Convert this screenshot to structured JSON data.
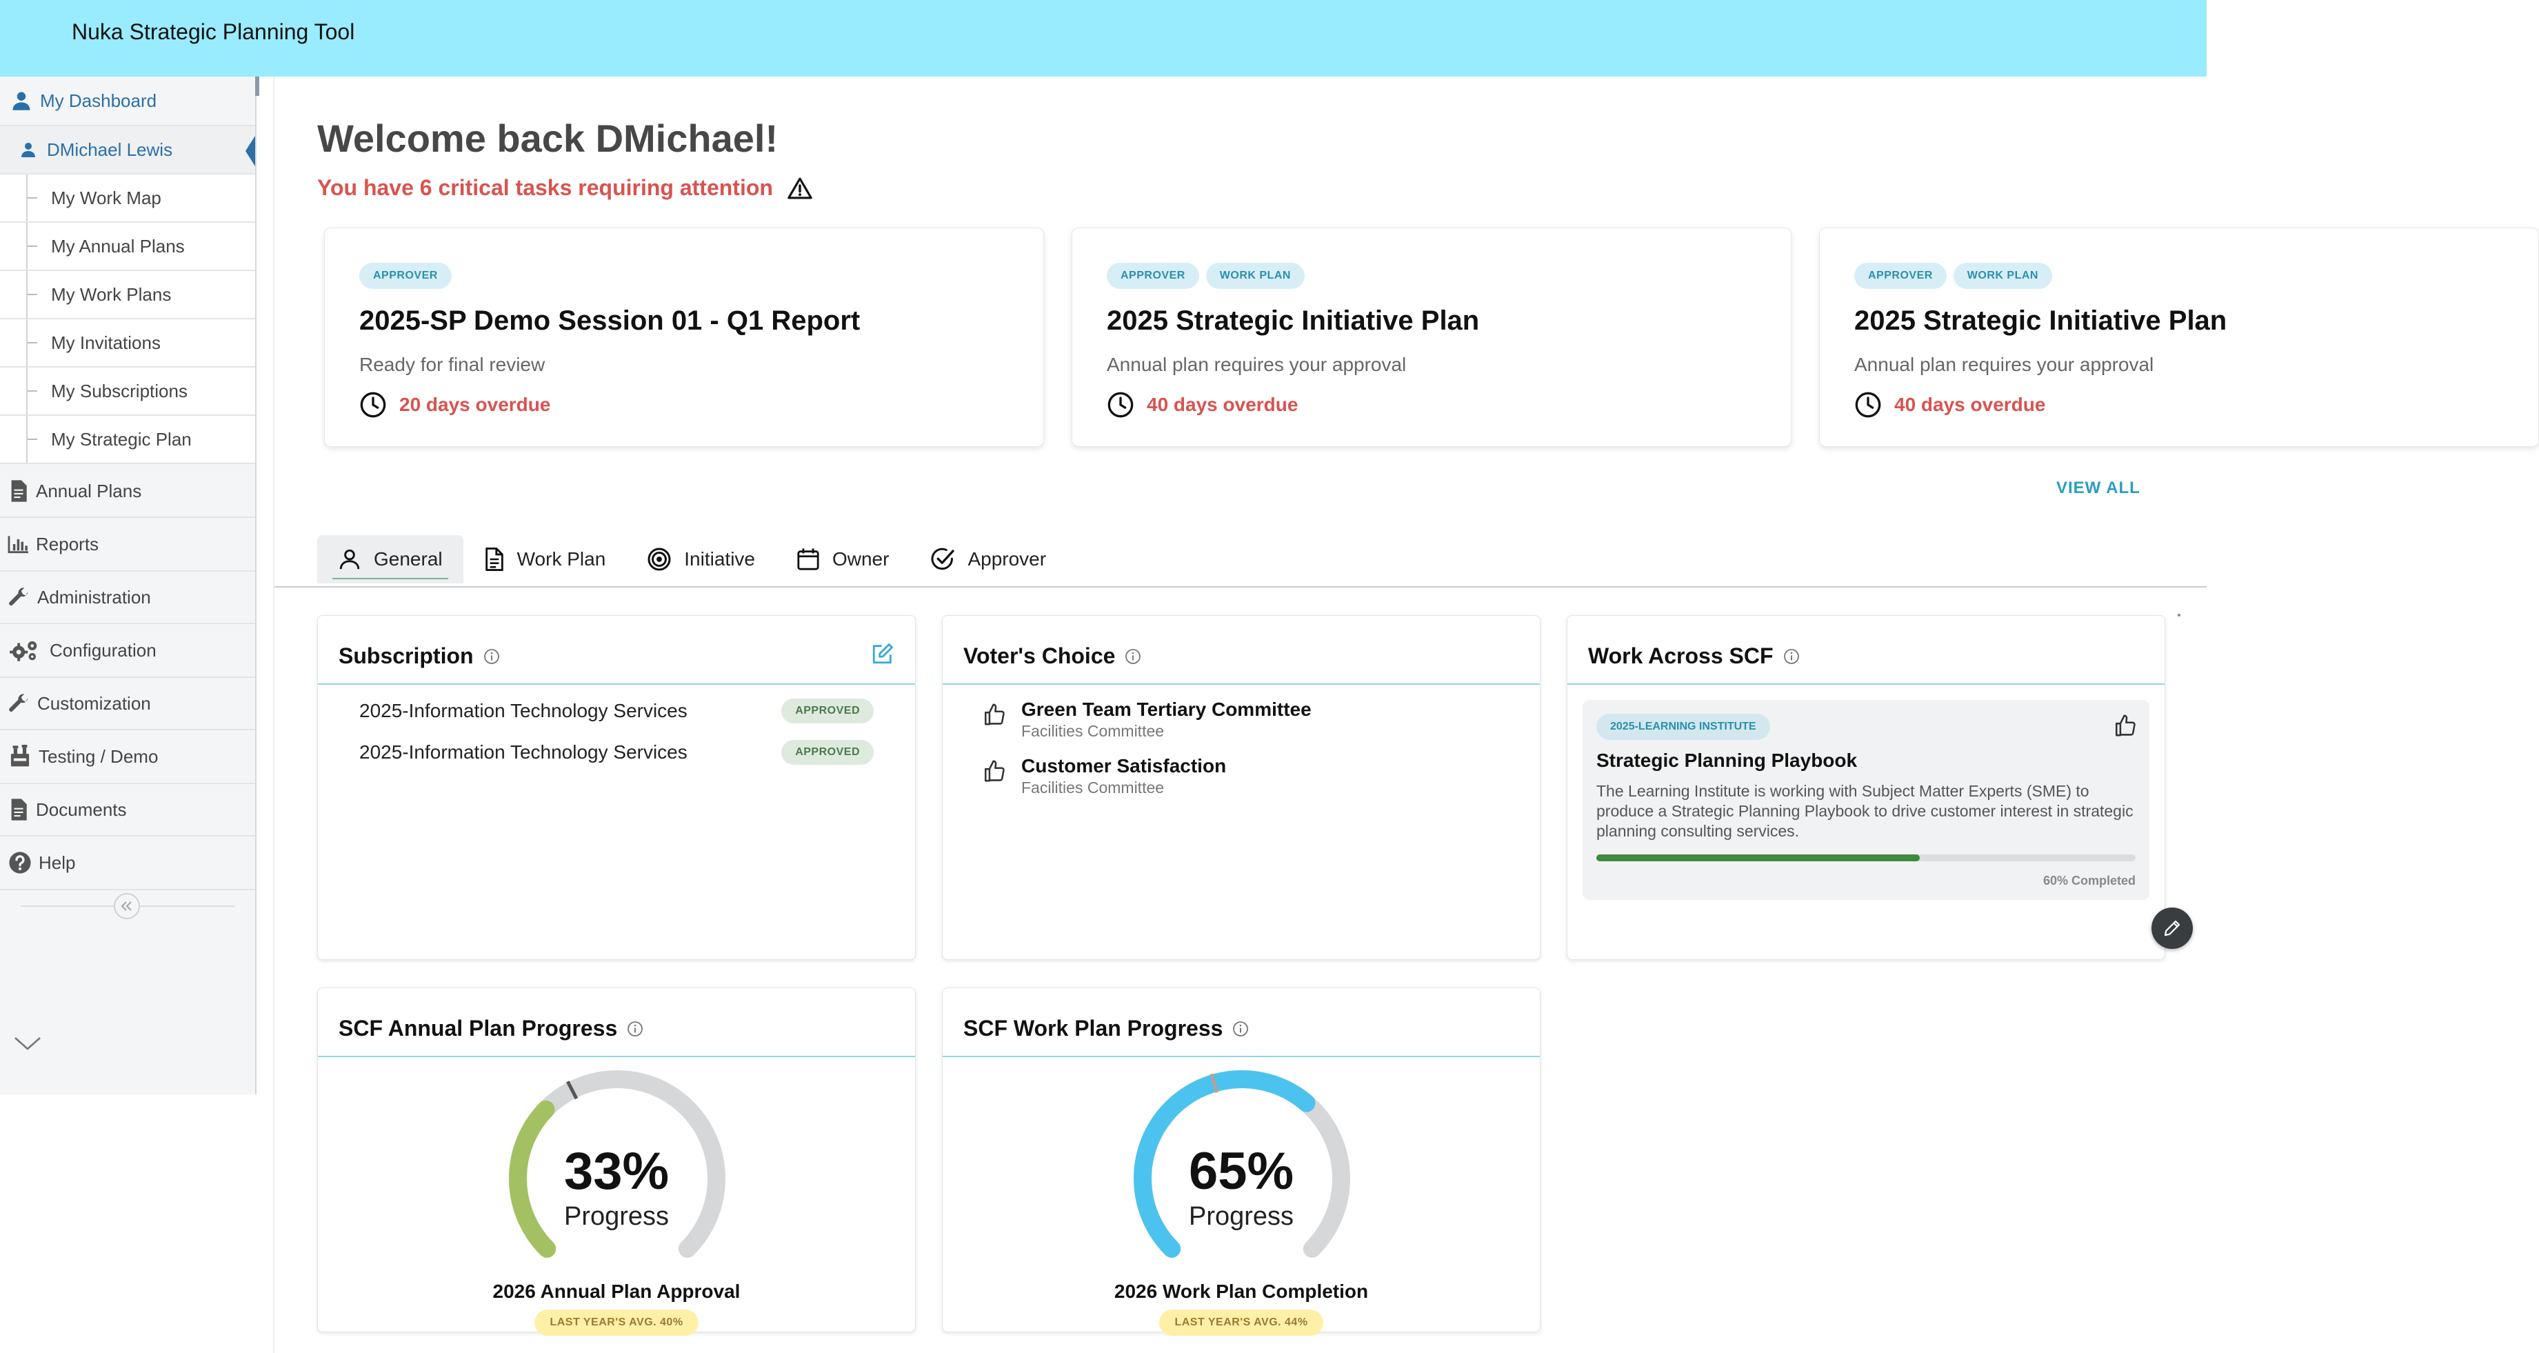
{
  "app": {
    "title": "Nuka Strategic Planning Tool"
  },
  "sidebar": {
    "items": [
      {
        "label": "My Dashboard",
        "icon": "user-icon"
      },
      {
        "label": "DMichael Lewis",
        "icon": "user-icon"
      },
      {
        "label": "My Work Map"
      },
      {
        "label": "My Annual Plans"
      },
      {
        "label": "My Work Plans"
      },
      {
        "label": "My Invitations"
      },
      {
        "label": "My Subscriptions"
      },
      {
        "label": "My Strategic Plan"
      },
      {
        "label": "Annual Plans",
        "icon": "document-icon"
      },
      {
        "label": "Reports",
        "icon": "bar-chart-icon"
      },
      {
        "label": "Administration",
        "icon": "wrench-icon"
      },
      {
        "label": "Configuration",
        "icon": "gears-icon"
      },
      {
        "label": "Customization",
        "icon": "wrench-icon"
      },
      {
        "label": "Testing / Demo",
        "icon": "flask-icon"
      },
      {
        "label": "Documents",
        "icon": "document-icon"
      },
      {
        "label": "Help",
        "icon": "help-icon"
      }
    ]
  },
  "welcome": {
    "greeting": "Welcome back DMichael!",
    "critical": "You have 6 critical tasks requiring attention"
  },
  "task_cards": [
    {
      "badges": [
        "APPROVER"
      ],
      "title": "2025-SP Demo Session 01 - Q1 Report",
      "subtitle": "Ready for final review",
      "due": "20 days overdue"
    },
    {
      "badges": [
        "APPROVER",
        "WORK PLAN"
      ],
      "title": "2025 Strategic Initiative Plan",
      "subtitle": "Annual plan requires your approval",
      "due": "40 days overdue"
    },
    {
      "badges": [
        "APPROVER",
        "WORK PLAN"
      ],
      "title": "2025 Strategic Initiative Plan",
      "subtitle": "Annual plan requires your approval",
      "due": "40 days overdue"
    }
  ],
  "view_all": "VIEW ALL",
  "tabs": [
    "General",
    "Work Plan",
    "Initiative",
    "Owner",
    "Approver"
  ],
  "subscription": {
    "title": "Subscription",
    "rows": [
      {
        "name": "2025-Information Technology Services",
        "status": "APPROVED"
      },
      {
        "name": "2025-Information Technology Services",
        "status": "APPROVED"
      }
    ]
  },
  "voters_choice": {
    "title": "Voter's Choice",
    "items": [
      {
        "name": "Green Team Tertiary Committee",
        "sub": "Facilities Committee"
      },
      {
        "name": "Customer Satisfaction",
        "sub": "Facilities Committee"
      }
    ]
  },
  "work_across": {
    "title": "Work Across SCF",
    "badge": "2025-LEARNING INSTITUTE",
    "card_title": "Strategic Planning Playbook",
    "description": "The Learning Institute is working with Subject Matter Experts (SME) to produce a Strategic Planning Playbook to drive customer interest in strategic planning consulting services.",
    "progress": 0.6,
    "progress_label": "60% Completed"
  },
  "annual_progress": {
    "title": "SCF Annual Plan Progress",
    "percent_text": "33%",
    "percent": 33,
    "progress_word": "Progress",
    "name": "2026 Annual Plan Approval",
    "avg": "LAST YEAR'S AVG. 40%",
    "avg_value": 40,
    "color": "#a3c162"
  },
  "work_progress": {
    "title": "SCF Work Plan Progress",
    "percent_text": "65%",
    "percent": 65,
    "progress_word": "Progress",
    "name": "2026 Work Plan Completion",
    "avg": "LAST YEAR'S AVG. 44%",
    "avg_value": 44,
    "color": "#4cc3ee"
  }
}
